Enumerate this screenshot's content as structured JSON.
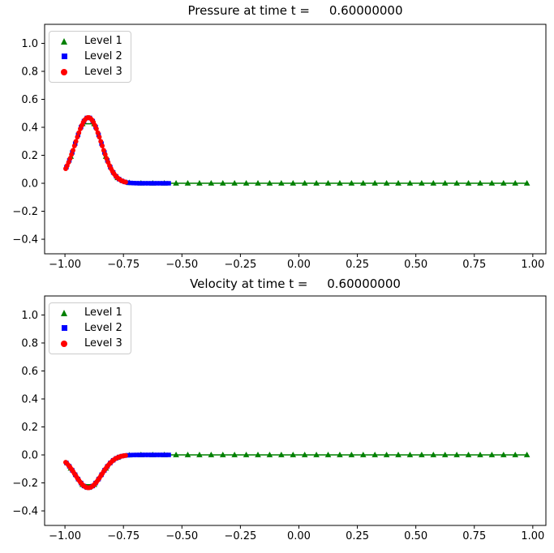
{
  "figure": {
    "background": "#ffffff",
    "text_color": "#000000",
    "spine_color": "#000000",
    "legend_border_color": "#cccccc",
    "time": "0.60000000"
  },
  "chart_data": [
    {
      "type": "line",
      "title": "Pressure at time t =     0.60000000",
      "xlabel": "",
      "ylabel": "",
      "grid": false,
      "legend_position": "upper-left",
      "xlim": [
        -1.087,
        1.056
      ],
      "ylim": [
        -0.504,
        1.136
      ],
      "xticks": [
        -1.0,
        -0.75,
        -0.5,
        -0.25,
        0.0,
        0.25,
        0.5,
        0.75,
        1.0
      ],
      "xtick_labels": [
        "−1.00",
        "−0.75",
        "−0.50",
        "−0.25",
        "0.00",
        "0.25",
        "0.50",
        "0.75",
        "1.00"
      ],
      "yticks": [
        1.0,
        0.8,
        0.6,
        0.4,
        0.2,
        0.0,
        -0.2,
        -0.4
      ],
      "ytick_labels": [
        "1.0",
        "0.8",
        "0.6",
        "0.4",
        "0.2",
        "0.0",
        "−0.2",
        "−0.4"
      ],
      "series": [
        {
          "name": "Level 1",
          "marker": "triangle",
          "color": "#008000",
          "x": [
            -0.975,
            -0.925,
            -0.875,
            -0.825,
            -0.775,
            -0.725,
            -0.675,
            -0.625,
            -0.575,
            -0.525,
            -0.475,
            -0.425,
            -0.375,
            -0.325,
            -0.275,
            -0.225,
            -0.175,
            -0.125,
            -0.075,
            -0.025,
            0.025,
            0.075,
            0.125,
            0.175,
            0.225,
            0.275,
            0.325,
            0.375,
            0.425,
            0.475,
            0.525,
            0.575,
            0.625,
            0.675,
            0.725,
            0.775,
            0.825,
            0.875,
            0.925,
            0.975
          ],
          "y": [
            0.1911,
            0.4253,
            0.4253,
            0.1911,
            0.0386,
            0.0035,
            0.0001,
            0,
            0,
            0,
            0,
            0,
            0,
            0,
            0,
            0,
            0,
            0,
            0,
            0,
            0,
            0,
            0,
            0,
            0,
            0,
            0,
            0,
            0,
            0,
            0,
            0,
            0,
            0,
            0,
            0,
            0,
            0,
            0,
            0
          ]
        },
        {
          "name": "Level 2",
          "marker": "square",
          "color": "#0000ff",
          "x": [
            -0.99375,
            -0.98125,
            -0.96875,
            -0.95625,
            -0.94375,
            -0.93125,
            -0.91875,
            -0.90625,
            -0.89375,
            -0.88125,
            -0.86875,
            -0.85625,
            -0.84375,
            -0.83125,
            -0.81875,
            -0.80625,
            -0.79375,
            -0.78125,
            -0.76875,
            -0.75625,
            -0.74375,
            -0.73125,
            -0.71875,
            -0.70625,
            -0.69375,
            -0.68125,
            -0.66875,
            -0.65625,
            -0.64375,
            -0.63125,
            -0.61875,
            -0.60625,
            -0.59375,
            -0.58125,
            -0.56875,
            -0.55625
          ],
          "y": [
            0.1152,
            0.1634,
            0.2206,
            0.2833,
            0.346,
            0.402,
            0.4443,
            0.4671,
            0.4671,
            0.4443,
            0.402,
            0.346,
            0.2833,
            0.2206,
            0.1634,
            0.1152,
            0.0772,
            0.0493,
            0.0299,
            0.0172,
            0.0095,
            0.0049,
            0.0025,
            0.0012,
            0.0005,
            0.0002,
            0.0001,
            0,
            0,
            0,
            0,
            0,
            0,
            0,
            0,
            0
          ]
        },
        {
          "name": "Level 3",
          "marker": "circle",
          "color": "#ff0000",
          "x": [
            -0.996875,
            -0.990625,
            -0.984375,
            -0.978125,
            -0.971875,
            -0.965625,
            -0.959375,
            -0.953125,
            -0.946875,
            -0.940625,
            -0.934375,
            -0.928125,
            -0.921875,
            -0.915625,
            -0.909375,
            -0.903125,
            -0.896875,
            -0.890625,
            -0.884375,
            -0.878125,
            -0.871875,
            -0.865625,
            -0.859375,
            -0.853125,
            -0.846875,
            -0.840625,
            -0.834375,
            -0.828125,
            -0.821875,
            -0.815625,
            -0.809375,
            -0.803125,
            -0.796875,
            -0.790625,
            -0.784375,
            -0.778125,
            -0.771875,
            -0.765625,
            -0.759375,
            -0.753125,
            -0.746875,
            -0.740625
          ],
          "y": [
            0.1047,
            0.1263,
            0.1504,
            0.177,
            0.2056,
            0.2359,
            0.2674,
            0.2992,
            0.3307,
            0.361,
            0.389,
            0.4141,
            0.4354,
            0.452,
            0.4634,
            0.4693,
            0.4693,
            0.4634,
            0.452,
            0.4354,
            0.4141,
            0.389,
            0.361,
            0.3307,
            0.2992,
            0.2674,
            0.2359,
            0.2056,
            0.177,
            0.1504,
            0.1263,
            0.1047,
            0.0857,
            0.0693,
            0.0554,
            0.0437,
            0.034,
            0.0261,
            0.0199,
            0.0149,
            0.011,
            0.0081
          ]
        }
      ]
    },
    {
      "type": "line",
      "title": "Velocity at time t =     0.60000000",
      "xlabel": "",
      "ylabel": "",
      "grid": false,
      "legend_position": "upper-left",
      "xlim": [
        -1.087,
        1.056
      ],
      "ylim": [
        -0.504,
        1.136
      ],
      "xticks": [
        -1.0,
        -0.75,
        -0.5,
        -0.25,
        0.0,
        0.25,
        0.5,
        0.75,
        1.0
      ],
      "xtick_labels": [
        "−1.00",
        "−0.75",
        "−0.50",
        "−0.25",
        "0.00",
        "0.25",
        "0.50",
        "0.75",
        "1.00"
      ],
      "yticks": [
        1.0,
        0.8,
        0.6,
        0.4,
        0.2,
        0.0,
        -0.2,
        -0.4
      ],
      "ytick_labels": [
        "1.0",
        "0.8",
        "0.6",
        "0.4",
        "0.2",
        "0.0",
        "−0.2",
        "−0.4"
      ],
      "series": [
        {
          "name": "Level 1",
          "marker": "triangle",
          "color": "#008000",
          "x": [
            -0.975,
            -0.925,
            -0.875,
            -0.825,
            -0.775,
            -0.725,
            -0.675,
            -0.625,
            -0.575,
            -0.525,
            -0.475,
            -0.425,
            -0.375,
            -0.325,
            -0.275,
            -0.225,
            -0.175,
            -0.125,
            -0.075,
            -0.025,
            0.025,
            0.075,
            0.125,
            0.175,
            0.225,
            0.275,
            0.325,
            0.375,
            0.425,
            0.475,
            0.525,
            0.575,
            0.625,
            0.675,
            0.725,
            0.775,
            0.825,
            0.875,
            0.925,
            0.975
          ],
          "y": [
            -0.0956,
            -0.2126,
            -0.2126,
            -0.0956,
            -0.0193,
            -0.0017,
            -0.0001,
            0,
            0,
            0,
            0,
            0,
            0,
            0,
            0,
            0,
            0,
            0,
            0,
            0,
            0,
            0,
            0,
            0,
            0,
            0,
            0,
            0,
            0,
            0,
            0,
            0,
            0,
            0,
            0,
            0,
            0,
            0,
            0,
            0
          ]
        },
        {
          "name": "Level 2",
          "marker": "square",
          "color": "#0000ff",
          "x": [
            -0.99375,
            -0.98125,
            -0.96875,
            -0.95625,
            -0.94375,
            -0.93125,
            -0.91875,
            -0.90625,
            -0.89375,
            -0.88125,
            -0.86875,
            -0.85625,
            -0.84375,
            -0.83125,
            -0.81875,
            -0.80625,
            -0.79375,
            -0.78125,
            -0.76875,
            -0.75625,
            -0.74375,
            -0.73125,
            -0.71875,
            -0.70625,
            -0.69375,
            -0.68125,
            -0.66875,
            -0.65625,
            -0.64375,
            -0.63125,
            -0.61875,
            -0.60625,
            -0.59375,
            -0.58125,
            -0.56875,
            -0.55625
          ],
          "y": [
            -0.0576,
            -0.0817,
            -0.1103,
            -0.1417,
            -0.173,
            -0.201,
            -0.2221,
            -0.2336,
            -0.2336,
            -0.2221,
            -0.201,
            -0.173,
            -0.1417,
            -0.1103,
            -0.0817,
            -0.0576,
            -0.0386,
            -0.0247,
            -0.015,
            -0.0086,
            -0.0048,
            -0.0025,
            -0.0012,
            -0.0006,
            -0.0003,
            -0.0001,
            0,
            0,
            0,
            0,
            0,
            0,
            0,
            0,
            0,
            0
          ]
        },
        {
          "name": "Level 3",
          "marker": "circle",
          "color": "#ff0000",
          "x": [
            -0.996875,
            -0.990625,
            -0.984375,
            -0.978125,
            -0.971875,
            -0.965625,
            -0.959375,
            -0.953125,
            -0.946875,
            -0.940625,
            -0.934375,
            -0.928125,
            -0.921875,
            -0.915625,
            -0.909375,
            -0.903125,
            -0.896875,
            -0.890625,
            -0.884375,
            -0.878125,
            -0.871875,
            -0.865625,
            -0.859375,
            -0.853125,
            -0.846875,
            -0.840625,
            -0.834375,
            -0.828125,
            -0.821875,
            -0.815625,
            -0.809375,
            -0.803125,
            -0.796875,
            -0.790625,
            -0.784375,
            -0.778125,
            -0.771875,
            -0.765625,
            -0.759375,
            -0.753125,
            -0.746875,
            -0.740625
          ],
          "y": [
            -0.0524,
            -0.0632,
            -0.0752,
            -0.0885,
            -0.1028,
            -0.118,
            -0.1337,
            -0.1496,
            -0.1654,
            -0.1805,
            -0.1945,
            -0.2071,
            -0.2177,
            -0.226,
            -0.2317,
            -0.2347,
            -0.2347,
            -0.2317,
            -0.226,
            -0.2177,
            -0.2071,
            -0.1945,
            -0.1805,
            -0.1654,
            -0.1496,
            -0.1337,
            -0.118,
            -0.1028,
            -0.0885,
            -0.0752,
            -0.0632,
            -0.0524,
            -0.0429,
            -0.0347,
            -0.0277,
            -0.0219,
            -0.017,
            -0.0131,
            -0.01,
            -0.0075,
            -0.0055,
            -0.0041
          ]
        }
      ]
    }
  ]
}
